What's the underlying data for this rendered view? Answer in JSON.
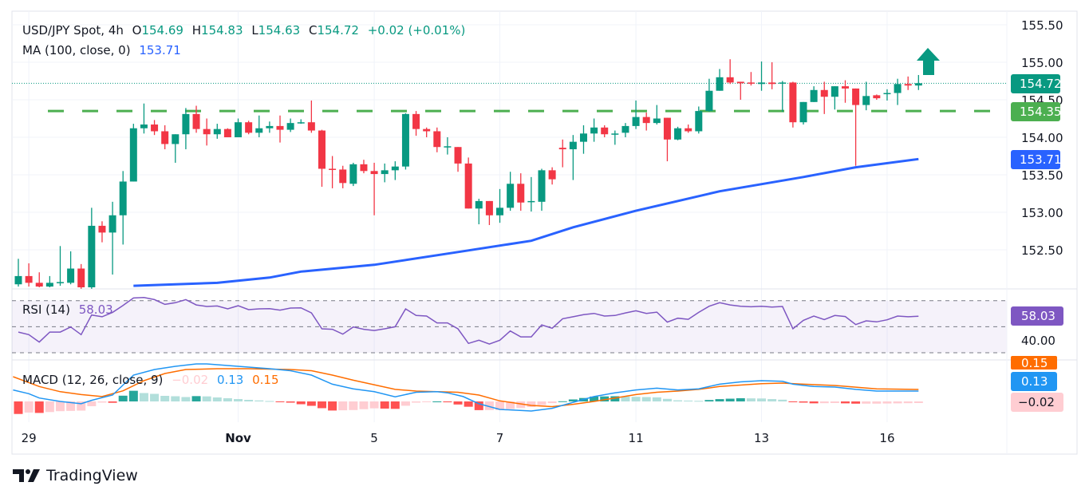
{
  "legend": {
    "symbol": "USD/JPY Spot, 4h",
    "o_label": "O",
    "o": "154.69",
    "h_label": "H",
    "h": "154.83",
    "l_label": "L",
    "l": "154.63",
    "c_label": "C",
    "c": "154.72",
    "change": "+0.02 (+0.01%)",
    "ma_label": "MA (100, close, 0)",
    "ma_value": "153.71",
    "rsi_label": "RSI (14)",
    "rsi_value": "58.03",
    "macd_label": "MACD (12, 26, close, 9)",
    "macd_hist": "−0.02",
    "macd_value": "0.13",
    "macd_signal": "0.15"
  },
  "price_axis": [
    "155.50",
    "155.00",
    "154.50",
    "154.00",
    "153.50",
    "153.00",
    "152.50"
  ],
  "rsi_axis": [
    "40.00"
  ],
  "tags": {
    "last_price": "154.72",
    "support": "154.35",
    "ma": "153.71",
    "rsi": "58.03",
    "signal": "0.15",
    "macd": "0.13",
    "hist": "−0.02"
  },
  "time_axis": [
    {
      "label": "29",
      "bar": 1,
      "bold": false
    },
    {
      "label": "Nov",
      "bar": 21,
      "bold": true
    },
    {
      "label": "5",
      "bar": 34,
      "bold": false
    },
    {
      "label": "7",
      "bar": 46,
      "bold": false
    },
    {
      "label": "11",
      "bar": 59,
      "bold": false
    },
    {
      "label": "13",
      "bar": 71,
      "bold": false
    },
    {
      "label": "16",
      "bar": 83,
      "bold": false
    }
  ],
  "brand": "TradingView",
  "colors": {
    "up": "#089981",
    "down": "#f23645",
    "ma": "#2962ff",
    "support": "#4caf50",
    "rsi": "#7e57c2",
    "macd": "#2196f3",
    "signal": "#ff6d00",
    "hist_up_strong": "#26a69a",
    "hist_up_weak": "#b2dfdb",
    "hist_down_strong": "#ff5252",
    "hist_down_weak": "#ffcdd2",
    "arrow": "#089981"
  },
  "chart_data": {
    "type": "candlestick",
    "interval": "4h",
    "ylim": [
      151.9,
      155.6
    ],
    "support_level": 154.35,
    "last_price": 154.72,
    "annotation": "up-arrow",
    "candles_ohlc": [
      [
        152.04,
        152.38,
        152.01,
        152.15
      ],
      [
        152.15,
        152.32,
        152.01,
        152.06
      ],
      [
        152.06,
        152.2,
        152.0,
        152.01
      ],
      [
        152.01,
        152.15,
        152.0,
        152.06
      ],
      [
        152.06,
        152.55,
        152.02,
        152.07
      ],
      [
        152.06,
        152.48,
        152.04,
        152.25
      ],
      [
        152.25,
        152.31,
        151.98,
        152.0
      ],
      [
        152.0,
        153.06,
        151.98,
        152.82
      ],
      [
        152.82,
        152.88,
        152.6,
        152.73
      ],
      [
        152.73,
        153.14,
        152.17,
        152.96
      ],
      [
        152.96,
        153.55,
        152.57,
        153.41
      ],
      [
        153.41,
        154.18,
        153.41,
        154.12
      ],
      [
        154.12,
        154.45,
        154.05,
        154.17
      ],
      [
        154.17,
        154.23,
        154.03,
        154.08
      ],
      [
        154.08,
        154.16,
        153.84,
        153.91
      ],
      [
        153.91,
        154.04,
        153.66,
        154.04
      ],
      [
        154.04,
        154.39,
        153.84,
        154.31
      ],
      [
        154.31,
        154.42,
        154.06,
        154.11
      ],
      [
        154.11,
        154.25,
        153.89,
        154.04
      ],
      [
        154.04,
        154.18,
        153.98,
        154.11
      ],
      [
        154.11,
        154.12,
        154.0,
        154.0
      ],
      [
        154.0,
        154.25,
        154.0,
        154.2
      ],
      [
        154.2,
        154.22,
        154.04,
        154.06
      ],
      [
        154.06,
        154.29,
        154.0,
        154.12
      ],
      [
        154.12,
        154.21,
        154.06,
        154.15
      ],
      [
        154.15,
        154.29,
        153.93,
        154.1
      ],
      [
        154.1,
        154.25,
        154.07,
        154.19
      ],
      [
        154.19,
        154.24,
        154.18,
        154.2
      ],
      [
        154.2,
        154.49,
        154.06,
        154.09
      ],
      [
        154.09,
        154.1,
        153.34,
        153.58
      ],
      [
        153.58,
        153.75,
        153.32,
        153.57
      ],
      [
        153.57,
        153.62,
        153.32,
        153.39
      ],
      [
        153.38,
        153.66,
        153.35,
        153.64
      ],
      [
        153.64,
        153.7,
        153.52,
        153.55
      ],
      [
        153.55,
        153.66,
        152.96,
        153.51
      ],
      [
        153.51,
        153.65,
        153.4,
        153.56
      ],
      [
        153.56,
        153.68,
        153.43,
        153.61
      ],
      [
        153.61,
        154.32,
        153.57,
        154.31
      ],
      [
        154.31,
        154.35,
        154.02,
        154.11
      ],
      [
        154.11,
        154.13,
        154.0,
        154.08
      ],
      [
        154.08,
        154.13,
        153.8,
        153.87
      ],
      [
        153.88,
        154.0,
        153.77,
        153.88
      ],
      [
        153.87,
        153.87,
        153.54,
        153.65
      ],
      [
        153.65,
        153.73,
        153.05,
        153.05
      ],
      [
        153.05,
        153.18,
        152.84,
        153.15
      ],
      [
        153.15,
        153.15,
        152.83,
        152.96
      ],
      [
        152.96,
        153.31,
        152.86,
        153.06
      ],
      [
        153.06,
        153.54,
        153.02,
        153.38
      ],
      [
        153.38,
        153.52,
        153.02,
        153.13
      ],
      [
        153.14,
        153.47,
        153.01,
        153.15
      ],
      [
        153.14,
        153.58,
        153.02,
        153.56
      ],
      [
        153.56,
        153.6,
        153.37,
        153.44
      ],
      [
        153.86,
        153.97,
        153.6,
        153.84
      ],
      [
        153.84,
        154.03,
        153.43,
        153.94
      ],
      [
        153.94,
        154.16,
        153.78,
        154.05
      ],
      [
        154.05,
        154.25,
        153.94,
        154.13
      ],
      [
        154.13,
        154.16,
        154.0,
        154.04
      ],
      [
        154.04,
        154.09,
        153.9,
        154.05
      ],
      [
        154.06,
        154.19,
        154.0,
        154.15
      ],
      [
        154.15,
        154.49,
        154.11,
        154.27
      ],
      [
        154.27,
        154.33,
        154.09,
        154.19
      ],
      [
        154.19,
        154.43,
        154.17,
        154.25
      ],
      [
        154.26,
        154.26,
        153.68,
        153.97
      ],
      [
        153.97,
        154.14,
        153.96,
        154.12
      ],
      [
        154.12,
        154.17,
        154.06,
        154.08
      ],
      [
        154.08,
        154.41,
        154.05,
        154.35
      ],
      [
        154.35,
        154.78,
        154.34,
        154.62
      ],
      [
        154.62,
        154.91,
        154.62,
        154.8
      ],
      [
        154.8,
        155.04,
        154.71,
        154.73
      ],
      [
        154.74,
        154.74,
        154.5,
        154.72
      ],
      [
        154.73,
        154.87,
        154.69,
        154.72
      ],
      [
        154.71,
        155.01,
        154.62,
        154.73
      ],
      [
        154.73,
        155.0,
        154.64,
        154.71
      ],
      [
        154.72,
        154.75,
        154.34,
        154.73
      ],
      [
        154.73,
        154.74,
        154.13,
        154.2
      ],
      [
        154.2,
        154.47,
        154.17,
        154.47
      ],
      [
        154.47,
        154.68,
        154.47,
        154.63
      ],
      [
        154.63,
        154.74,
        154.31,
        154.54
      ],
      [
        154.54,
        154.68,
        154.37,
        154.68
      ],
      [
        154.68,
        154.76,
        154.46,
        154.65
      ],
      [
        154.65,
        154.65,
        153.62,
        154.43
      ],
      [
        154.43,
        154.74,
        154.36,
        154.55
      ],
      [
        154.56,
        154.57,
        154.5,
        154.52
      ],
      [
        154.58,
        154.64,
        154.49,
        154.59
      ],
      [
        154.59,
        154.78,
        154.43,
        154.71
      ],
      [
        154.71,
        154.81,
        154.63,
        154.69
      ],
      [
        154.69,
        154.83,
        154.63,
        154.72
      ]
    ],
    "ma100": [
      [
        11,
        152.02
      ],
      [
        19,
        152.06
      ],
      [
        24,
        152.13
      ],
      [
        27,
        152.21
      ],
      [
        34,
        152.3
      ],
      [
        42,
        152.47
      ],
      [
        49,
        152.62
      ],
      [
        53,
        152.8
      ],
      [
        59,
        153.02
      ],
      [
        67,
        153.28
      ],
      [
        75,
        153.47
      ],
      [
        80,
        153.6
      ],
      [
        86,
        153.71
      ]
    ],
    "rsi": {
      "levels": [
        70,
        50,
        30
      ],
      "values": [
        45.9,
        43.9,
        38.2,
        45.9,
        45.9,
        49.8,
        43.9,
        59.0,
        57.6,
        61.0,
        66.3,
        72.0,
        72.4,
        70.8,
        67.1,
        68.4,
        70.8,
        66.7,
        65.5,
        65.9,
        63.7,
        66.1,
        63.1,
        63.7,
        63.9,
        62.7,
        64.3,
        64.5,
        60.6,
        48.4,
        48.0,
        44.3,
        49.8,
        48.0,
        47.1,
        48.4,
        50.0,
        63.7,
        58.6,
        58.2,
        52.9,
        52.9,
        48.4,
        37.2,
        39.6,
        36.7,
        39.6,
        46.7,
        42.2,
        42.2,
        51.4,
        48.8,
        56.1,
        57.6,
        59.2,
        60.2,
        58.2,
        58.6,
        60.6,
        62.2,
        60.2,
        61.2,
        53.5,
        56.5,
        55.7,
        61.0,
        65.7,
        68.4,
        66.7,
        65.7,
        65.3,
        65.7,
        65.1,
        65.5,
        48.4,
        54.9,
        58.2,
        55.5,
        58.6,
        57.8,
        51.6,
        54.5,
        53.7,
        55.3,
        58.2,
        57.6,
        58.03
      ]
    },
    "macd": {
      "macd_line": [
        [
          -0.5,
          0.144
        ],
        [
          1,
          0.097
        ],
        [
          2,
          0.043
        ],
        [
          4,
          0.0
        ],
        [
          6,
          -0.029
        ],
        [
          7,
          0.014
        ],
        [
          9,
          0.08
        ],
        [
          11,
          0.33
        ],
        [
          13,
          0.4
        ],
        [
          15,
          0.44
        ],
        [
          17,
          0.47
        ],
        [
          18,
          0.47
        ],
        [
          20,
          0.45
        ],
        [
          22,
          0.43
        ],
        [
          24,
          0.41
        ],
        [
          26,
          0.385
        ],
        [
          28,
          0.33
        ],
        [
          30,
          0.216
        ],
        [
          32,
          0.158
        ],
        [
          34,
          0.122
        ],
        [
          36,
          0.058
        ],
        [
          38,
          0.115
        ],
        [
          40,
          0.122
        ],
        [
          41,
          0.108
        ],
        [
          42.5,
          0.061
        ],
        [
          44,
          -0.029
        ],
        [
          46,
          -0.1
        ],
        [
          49,
          -0.12
        ],
        [
          51,
          -0.086
        ],
        [
          53,
          -0.011
        ],
        [
          55,
          0.061
        ],
        [
          57,
          0.108
        ],
        [
          59,
          0.144
        ],
        [
          61,
          0.166
        ],
        [
          63,
          0.144
        ],
        [
          65,
          0.158
        ],
        [
          67,
          0.216
        ],
        [
          69,
          0.245
        ],
        [
          71,
          0.26
        ],
        [
          73,
          0.252
        ],
        [
          74,
          0.216
        ],
        [
          76,
          0.187
        ],
        [
          78,
          0.18
        ],
        [
          80,
          0.151
        ],
        [
          82,
          0.13
        ],
        [
          84,
          0.13
        ],
        [
          86,
          0.13
        ]
      ],
      "signal_line": [
        [
          -0.5,
          0.31
        ],
        [
          2,
          0.187
        ],
        [
          4,
          0.122
        ],
        [
          6,
          0.086
        ],
        [
          8,
          0.061
        ],
        [
          10,
          0.133
        ],
        [
          12,
          0.26
        ],
        [
          14,
          0.35
        ],
        [
          16,
          0.4
        ],
        [
          19,
          0.41
        ],
        [
          22,
          0.41
        ],
        [
          26,
          0.4
        ],
        [
          28,
          0.385
        ],
        [
          30,
          0.33
        ],
        [
          32,
          0.266
        ],
        [
          36,
          0.151
        ],
        [
          38,
          0.13
        ],
        [
          40,
          0.122
        ],
        [
          42,
          0.115
        ],
        [
          44,
          0.08
        ],
        [
          46,
          0.007
        ],
        [
          49,
          -0.05
        ],
        [
          51,
          -0.065
        ],
        [
          53,
          -0.036
        ],
        [
          55,
          0.0
        ],
        [
          57,
          0.043
        ],
        [
          59,
          0.086
        ],
        [
          61,
          0.115
        ],
        [
          63,
          0.13
        ],
        [
          65,
          0.151
        ],
        [
          67,
          0.187
        ],
        [
          69,
          0.205
        ],
        [
          71,
          0.223
        ],
        [
          73,
          0.23
        ],
        [
          75,
          0.216
        ],
        [
          78,
          0.2
        ],
        [
          82,
          0.158
        ],
        [
          86,
          0.15
        ]
      ]
    }
  }
}
